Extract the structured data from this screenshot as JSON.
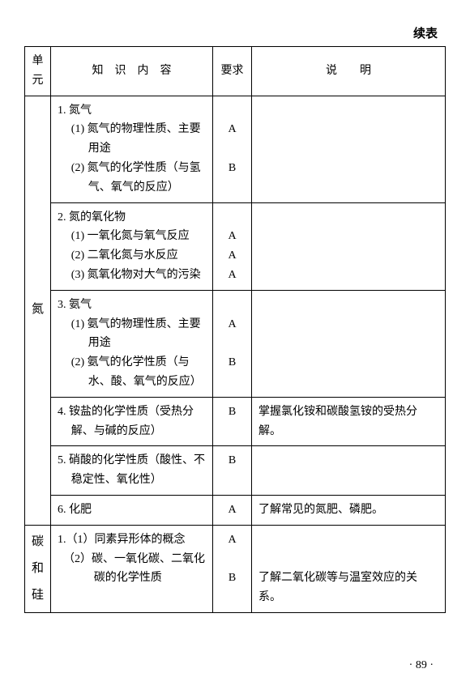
{
  "continued_label": "续表",
  "headers": {
    "unit": "单元",
    "content": "知　识　内　容",
    "requirement": "要求",
    "note": "说　　明"
  },
  "units": {
    "nitrogen": "氮",
    "carbon_silicon_1": "碳",
    "carbon_silicon_2": "和",
    "carbon_silicon_3": "硅"
  },
  "rows": {
    "r1": {
      "title": "1. 氮气",
      "sub1": "(1) 氮气的物理性质、主要用途",
      "sub2": "(2) 氮气的化学性质（与氢气、氧气的反应）",
      "req1": "A",
      "req2": "B"
    },
    "r2": {
      "title": "2. 氮的氧化物",
      "sub1": "(1) 一氧化氮与氧气反应",
      "sub2": "(2) 二氧化氮与水反应",
      "sub3": "(3) 氮氧化物对大气的污染",
      "req1": "A",
      "req2": "A",
      "req3": "A"
    },
    "r3": {
      "title": "3. 氨气",
      "sub1": "(1) 氨气的物理性质、主要用途",
      "sub2": "(2) 氨气的化学性质（与水、酸、氧气的反应）",
      "req1": "A",
      "req2": "B"
    },
    "r4": {
      "title": "4. 铵盐的化学性质（受热分解、与碱的反应）",
      "req": "B",
      "note": "掌握氯化铵和碳酸氢铵的受热分解。"
    },
    "r5": {
      "title": "5. 硝酸的化学性质（酸性、不稳定性、氧化性）",
      "req": "B"
    },
    "r6": {
      "title": "6. 化肥",
      "req": "A",
      "note": "了解常见的氮肥、磷肥。"
    },
    "r7": {
      "sub1": "1.（1）同素异形体的概念",
      "sub2": "　（2）碳、一氧化碳、二氧化碳的化学性质",
      "req1": "A",
      "req2": "B",
      "note": "了解二氧化碳等与温室效应的关系。"
    }
  },
  "page_number": "· 89 ·"
}
